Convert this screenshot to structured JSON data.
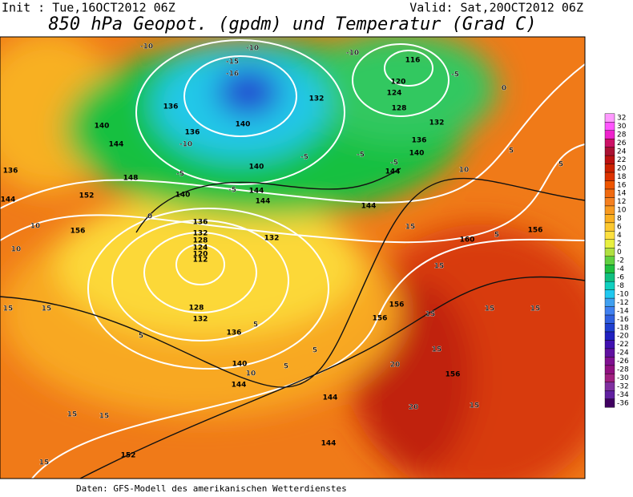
{
  "header": {
    "init": "Init : Tue,16OCT2012 06Z",
    "valid": "Valid: Sat,20OCT2012 06Z",
    "title": "850 hPa Geopot. (gpdm) und Temperatur (Grad C)"
  },
  "footer": "Daten: GFS-Modell des amerikanischen Wetterdienstes",
  "colorbar": {
    "labels": [
      32,
      30,
      28,
      26,
      24,
      22,
      20,
      18,
      16,
      14,
      12,
      10,
      8,
      6,
      4,
      2,
      0,
      -2,
      -4,
      -6,
      -8,
      -10,
      -12,
      -14,
      -16,
      -18,
      -20,
      -22,
      -24,
      -26,
      -28,
      -30,
      -32,
      -34,
      -36
    ],
    "colors": [
      "#ff99ff",
      "#ff55ff",
      "#ee22cc",
      "#cc1166",
      "#aa1133",
      "#bb1111",
      "#cc2200",
      "#dd3300",
      "#ee5500",
      "#f06a10",
      "#f58020",
      "#f89a20",
      "#fbb020",
      "#fcc830",
      "#fde040",
      "#e8f040",
      "#b0e040",
      "#60d040",
      "#20c040",
      "#10c080",
      "#10d0c0",
      "#20c8f0",
      "#40a0f0",
      "#4080f0",
      "#3060e0",
      "#2040d0",
      "#2020c0",
      "#4010b0",
      "#6010a0",
      "#801090",
      "#901080",
      "#a02080",
      "#8030a0",
      "#6020a0",
      "#400060"
    ]
  },
  "contour_labels": [
    116,
    120,
    124,
    128,
    132,
    136,
    140,
    144,
    144,
    132,
    136,
    136,
    140,
    140,
    144,
    148,
    152,
    156,
    144,
    136,
    140,
    144,
    144,
    140,
    136,
    132,
    128,
    124,
    120,
    112,
    132,
    128,
    132,
    136,
    140,
    144,
    152,
    144,
    144,
    156,
    156,
    156,
    160,
    156,
    -10,
    -10,
    -15,
    -16,
    15,
    15,
    15,
    15,
    15,
    10,
    10,
    10,
    5,
    5,
    5,
    5,
    0,
    -5,
    -5,
    -5,
    -10,
    15,
    15,
    15,
    15,
    15,
    20,
    20,
    15,
    -5,
    -10,
    -5,
    -5,
    0,
    5,
    5,
    10,
    5,
    15
  ]
}
